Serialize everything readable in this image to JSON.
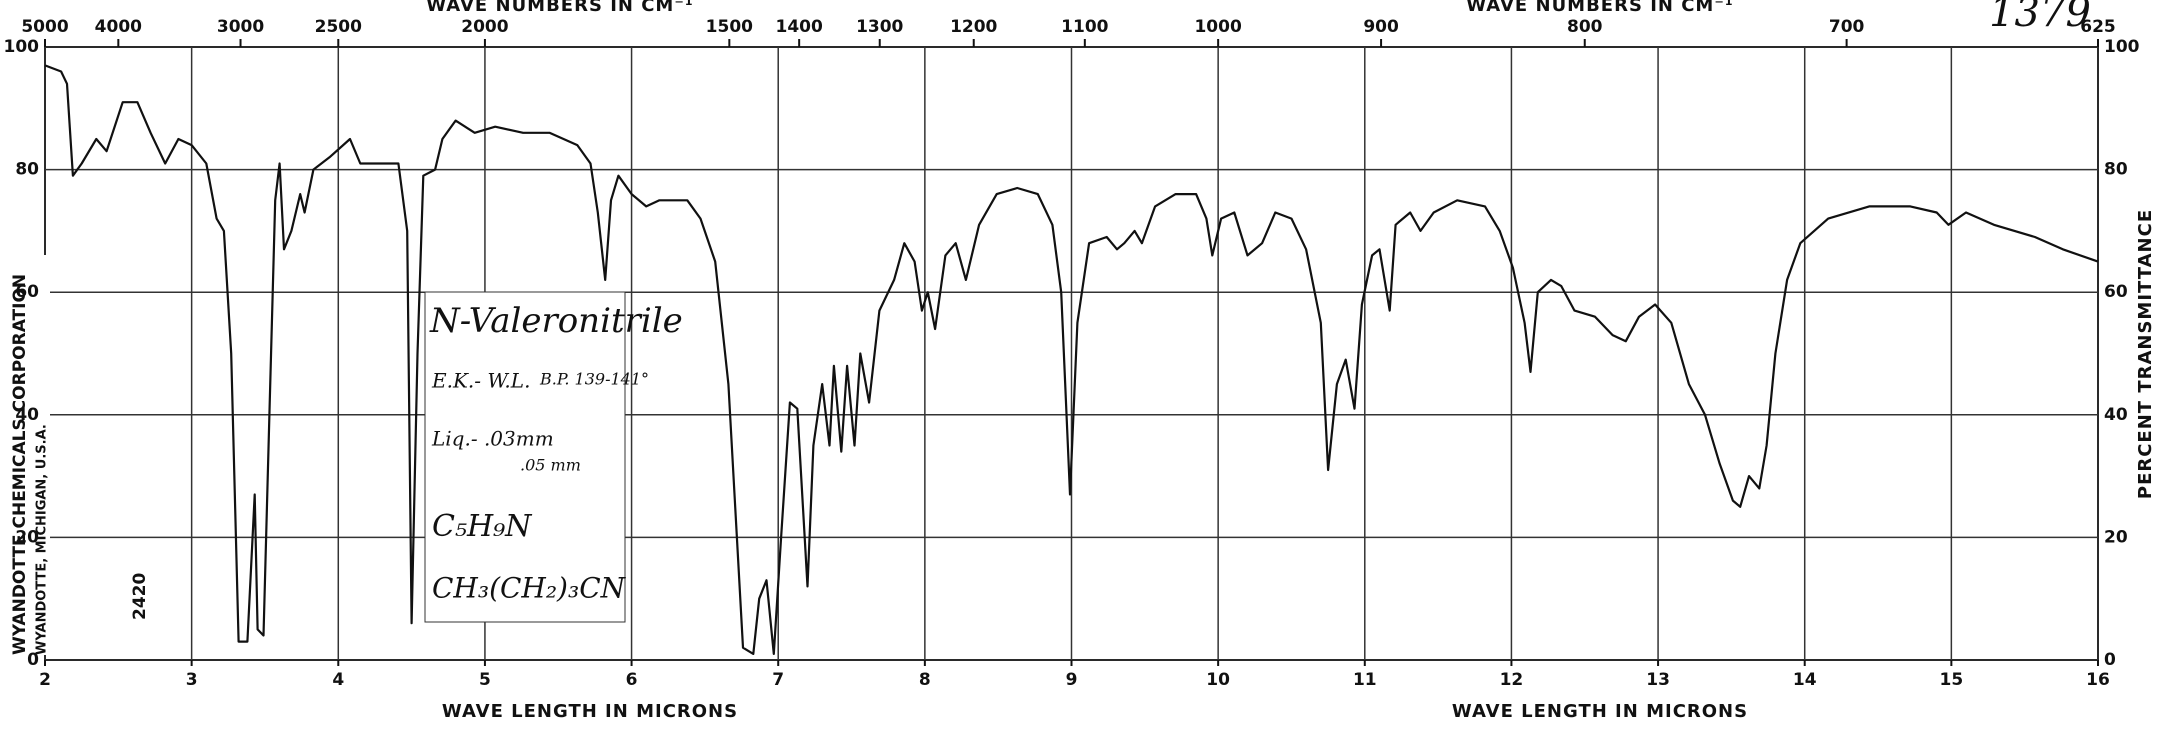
{
  "chart_data": {
    "type": "line",
    "x_label": "WAVE LENGTH IN MICRONS",
    "x2_label": "WAVE NUMBERS IN CM⁻¹",
    "y_label": "PERCENT TRANSMITTANCE",
    "publisher": "WYANDOTTE CHEMICALS CORPORATION",
    "publisher_location": "WYANDOTTE, MICHIGAN, U.S.A.",
    "chart_number": "2420",
    "spectrum_number": "1379",
    "notes": [
      "N-Valeronitrile",
      "E.K.- W.L.",
      "B.P. 139-141°",
      "Liq.- .03mm",
      ".05 mm",
      "C₅H₉N",
      "CH₃(CH₂)₃CN"
    ],
    "color": "#111111",
    "grid": true,
    "xlim": [
      2,
      16
    ],
    "ylim": [
      0,
      100
    ],
    "xticks": [
      2,
      3,
      4,
      5,
      6,
      7,
      8,
      9,
      10,
      11,
      12,
      13,
      14,
      15,
      16
    ],
    "yticks": [
      0,
      20,
      40,
      60,
      80,
      100
    ],
    "x2ticks": [
      5000,
      4000,
      3000,
      2500,
      2000,
      1500,
      1400,
      1300,
      1200,
      1100,
      1000,
      900,
      800,
      700,
      625
    ],
    "x": [
      2.0,
      2.11,
      2.15,
      2.19,
      2.25,
      2.35,
      2.42,
      2.53,
      2.63,
      2.72,
      2.82,
      2.91,
      3.0,
      3.1,
      3.17,
      3.22,
      3.27,
      3.32,
      3.38,
      3.43,
      3.45,
      3.49,
      3.53,
      3.57,
      3.6,
      3.63,
      3.68,
      3.74,
      3.77,
      3.83,
      3.94,
      4.08,
      4.15,
      4.41,
      4.47,
      4.5,
      4.54,
      4.58,
      4.66,
      4.71,
      4.8,
      4.93,
      5.07,
      5.26,
      5.44,
      5.63,
      5.72,
      5.77,
      5.82,
      5.86,
      5.91,
      6.0,
      6.1,
      6.19,
      6.38,
      6.47,
      6.57,
      6.66,
      6.76,
      6.83,
      6.87,
      6.92,
      6.97,
      7.02,
      7.08,
      7.13,
      7.2,
      7.24,
      7.3,
      7.35,
      7.38,
      7.43,
      7.47,
      7.52,
      7.56,
      7.62,
      7.69,
      7.79,
      7.86,
      7.93,
      7.98,
      8.02,
      8.07,
      8.14,
      8.21,
      8.28,
      8.37,
      8.49,
      8.63,
      8.77,
      8.87,
      8.93,
      8.99,
      9.04,
      9.12,
      9.24,
      9.31,
      9.36,
      9.43,
      9.48,
      9.57,
      9.71,
      9.85,
      9.92,
      9.96,
      10.02,
      10.11,
      10.2,
      10.3,
      10.39,
      10.5,
      10.6,
      10.7,
      10.75,
      10.81,
      10.87,
      10.93,
      10.98,
      11.05,
      11.1,
      11.17,
      11.21,
      11.31,
      11.38,
      11.47,
      11.63,
      11.82,
      11.92,
      12.01,
      12.09,
      12.13,
      12.18,
      12.27,
      12.34,
      12.43,
      12.57,
      12.69,
      12.78,
      12.87,
      12.98,
      13.09,
      13.21,
      13.32,
      13.42,
      13.51,
      13.56,
      13.62,
      13.69,
      13.74,
      13.8,
      13.88,
      13.97,
      14.16,
      14.44,
      14.72,
      14.9,
      14.98,
      15.1,
      15.29,
      15.57,
      15.76,
      16.0
    ],
    "values": [
      97,
      96,
      94,
      79,
      81,
      85,
      83,
      91,
      91,
      86,
      81,
      85,
      84,
      81,
      72,
      70,
      50,
      3,
      3,
      27,
      5,
      4,
      40,
      75,
      81,
      67,
      70,
      76,
      73,
      80,
      82,
      85,
      81,
      81,
      70,
      6,
      50,
      79,
      80,
      85,
      88,
      86,
      87,
      86,
      86,
      84,
      81,
      73,
      62,
      75,
      79,
      76,
      74,
      75,
      75,
      72,
      65,
      45,
      2,
      1,
      10,
      13,
      1,
      20,
      42,
      41,
      12,
      35,
      45,
      35,
      48,
      34,
      48,
      35,
      50,
      42,
      57,
      62,
      68,
      65,
      57,
      60,
      54,
      66,
      68,
      62,
      71,
      76,
      77,
      76,
      71,
      60,
      27,
      55,
      68,
      69,
      67,
      68,
      70,
      68,
      74,
      76,
      76,
      72,
      66,
      72,
      73,
      66,
      68,
      73,
      72,
      67,
      55,
      31,
      45,
      49,
      41,
      58,
      66,
      67,
      57,
      71,
      73,
      70,
      73,
      75,
      74,
      70,
      64,
      55,
      47,
      60,
      62,
      61,
      57,
      56,
      53,
      52,
      56,
      58,
      55,
      45,
      40,
      32,
      26,
      25,
      30,
      28,
      35,
      50,
      62,
      68,
      72,
      74,
      74,
      73,
      71,
      73,
      71,
      69,
      67,
      65
    ]
  }
}
